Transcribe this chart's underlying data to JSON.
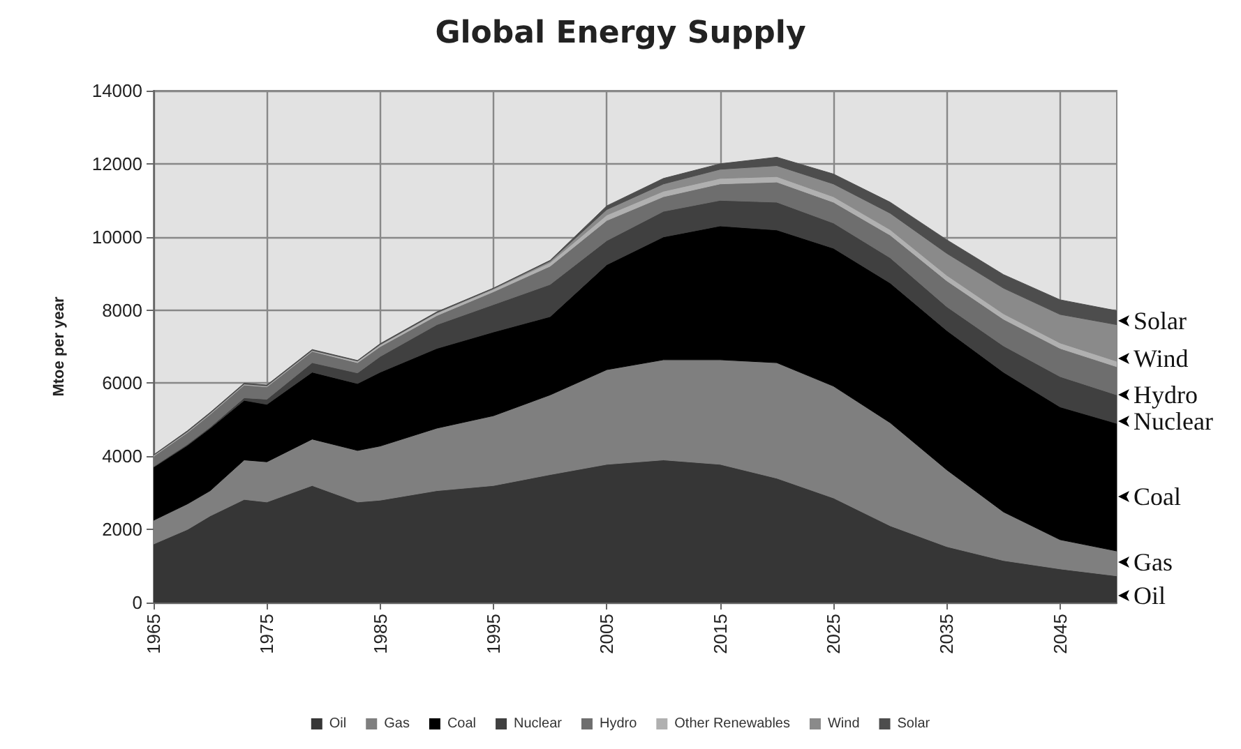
{
  "chart_data": {
    "type": "area",
    "stacked": true,
    "title": "Global Energy Supply",
    "ylabel": "Mtoe per year",
    "x": [
      1965,
      1968,
      1970,
      1973,
      1975,
      1979,
      1983,
      1985,
      1990,
      1995,
      2000,
      2005,
      2010,
      2015,
      2020,
      2025,
      2030,
      2035,
      2040,
      2045,
      2050
    ],
    "xlim": [
      1965,
      2050
    ],
    "xticks": [
      1965,
      1975,
      1985,
      1995,
      2005,
      2015,
      2025,
      2035,
      2045
    ],
    "ylim": [
      0,
      14000
    ],
    "yticks": [
      0,
      2000,
      4000,
      6000,
      8000,
      10000,
      12000,
      14000
    ],
    "grid": true,
    "legend": "bottom",
    "series": [
      {
        "name": "Oil",
        "color": "#363636",
        "values": [
          1600,
          2000,
          2370,
          2820,
          2750,
          3200,
          2750,
          2800,
          3060,
          3200,
          3500,
          3780,
          3900,
          3780,
          3400,
          2860,
          2100,
          1530,
          1150,
          920,
          730
        ]
      },
      {
        "name": "Gas",
        "color": "#7f7f7f",
        "values": [
          650,
          700,
          690,
          1080,
          1100,
          1270,
          1410,
          1480,
          1710,
          1910,
          2180,
          2590,
          2740,
          2860,
          3160,
          3060,
          2820,
          2100,
          1330,
          800,
          680
        ]
      },
      {
        "name": "Coal",
        "color": "#000000",
        "values": [
          1450,
          1600,
          1710,
          1630,
          1570,
          1830,
          1830,
          2020,
          2180,
          2290,
          2140,
          2870,
          3360,
          3660,
          3630,
          3770,
          3820,
          3810,
          3820,
          3630,
          3490
        ]
      },
      {
        "name": "Nuclear",
        "color": "#404040",
        "values": [
          20,
          30,
          30,
          70,
          140,
          260,
          290,
          430,
          650,
          750,
          880,
          660,
          700,
          700,
          760,
          690,
          690,
          650,
          720,
          830,
          780
        ]
      },
      {
        "name": "Hydro",
        "color": "#6e6e6e",
        "values": [
          280,
          320,
          350,
          350,
          340,
          310,
          280,
          270,
          250,
          350,
          500,
          550,
          400,
          450,
          550,
          570,
          620,
          710,
          730,
          770,
          770
        ]
      },
      {
        "name": "Other Renewables",
        "color": "#b0b0b0",
        "values": [
          20,
          20,
          20,
          20,
          20,
          20,
          40,
          50,
          70,
          70,
          100,
          150,
          150,
          150,
          150,
          150,
          150,
          150,
          150,
          150,
          150
        ]
      },
      {
        "name": "Wind",
        "color": "#8a8a8a",
        "values": [
          10,
          10,
          10,
          10,
          10,
          10,
          10,
          10,
          10,
          20,
          40,
          150,
          200,
          250,
          300,
          350,
          450,
          600,
          700,
          780,
          1000
        ]
      },
      {
        "name": "Solar",
        "color": "#4d4d4d",
        "values": [
          10,
          20,
          20,
          20,
          20,
          20,
          10,
          20,
          20,
          10,
          20,
          100,
          150,
          150,
          230,
          270,
          300,
          370,
          370,
          400,
          380
        ]
      }
    ],
    "annotations": [
      "Solar",
      "Wind",
      "Hydro",
      "Nuclear",
      "Coal",
      "Gas",
      "Oil"
    ]
  }
}
